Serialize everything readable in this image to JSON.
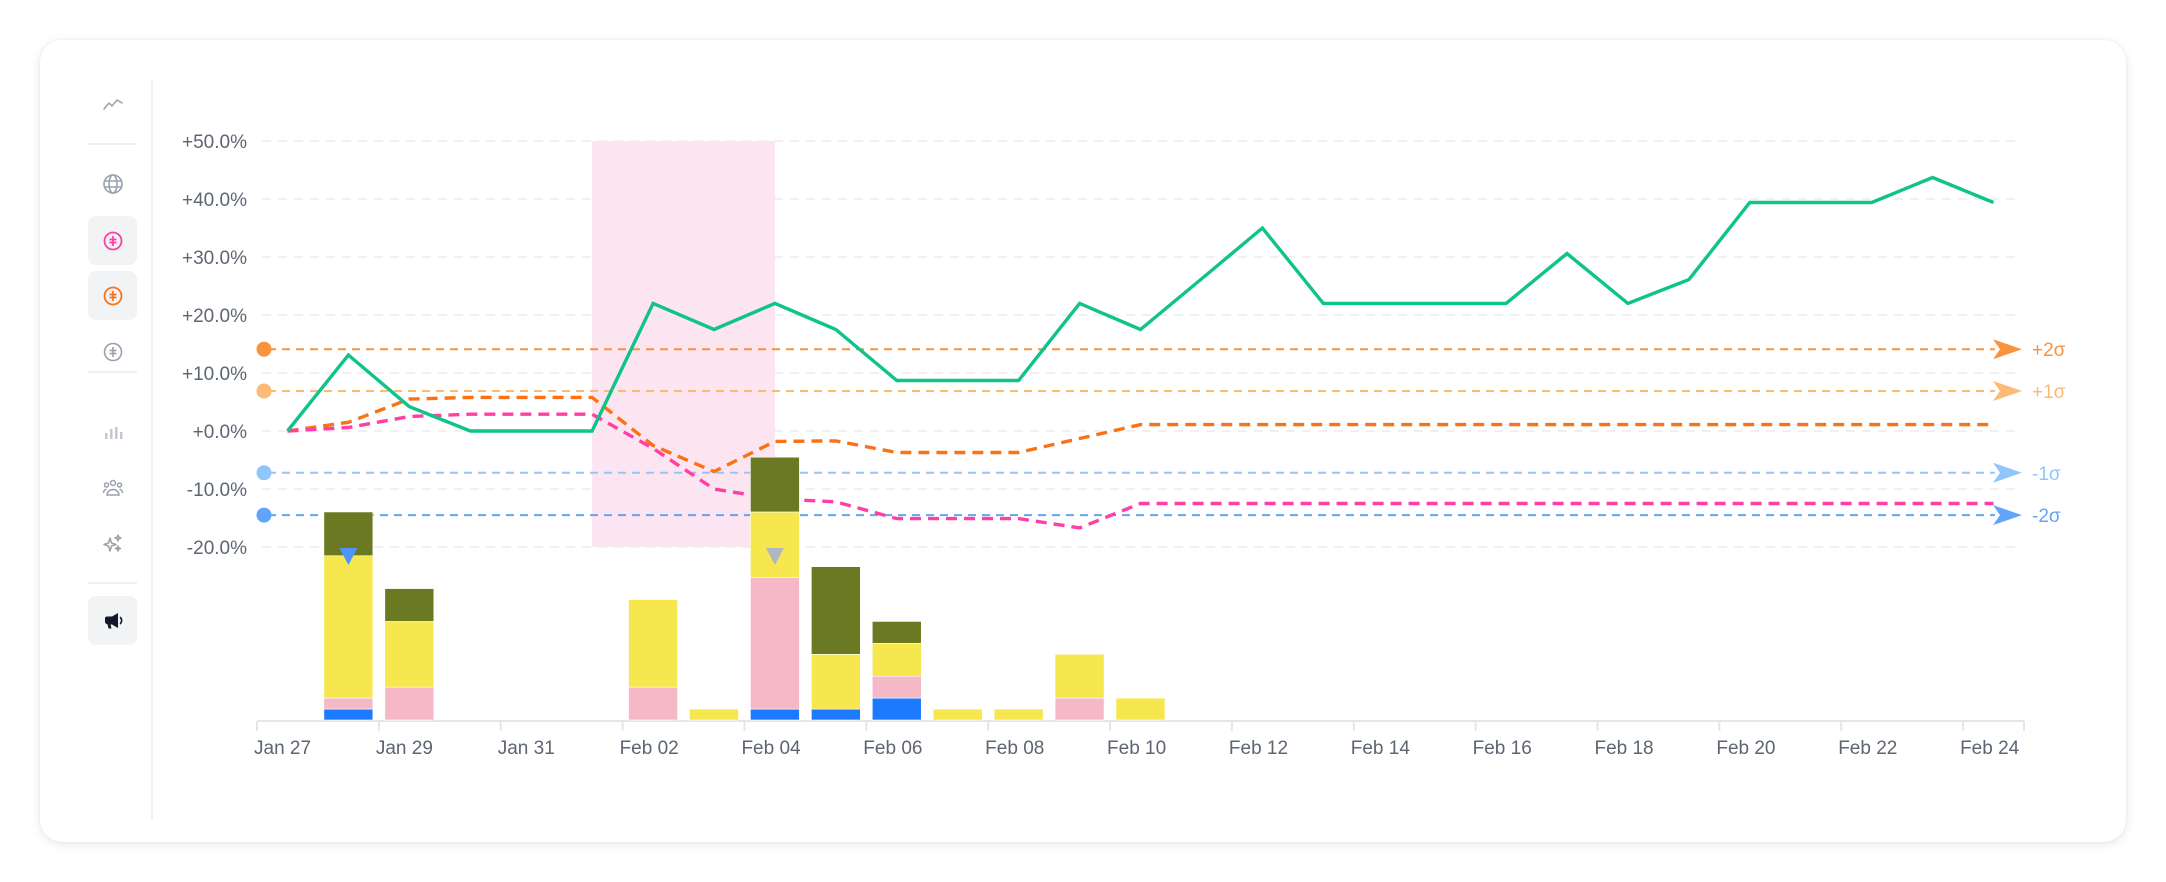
{
  "sidebar": {
    "items": [
      {
        "name": "trend-icon",
        "active": false
      },
      {
        "name": "globe-icon",
        "active": false
      },
      {
        "name": "pink-split-circle-icon",
        "active": true,
        "color": "#ff3fa4"
      },
      {
        "name": "orange-split-circle-icon",
        "active": true,
        "color": "#f97316"
      },
      {
        "name": "gray-split-circle-icon",
        "active": false,
        "color": "#9aa1ad"
      },
      {
        "name": "bar-chart-icon",
        "active": false
      },
      {
        "name": "users-icon",
        "active": false
      },
      {
        "name": "sparkles-icon",
        "active": false
      },
      {
        "name": "megaphone-icon",
        "active": true
      }
    ]
  },
  "colors": {
    "green": "#10c38a",
    "orange_dashed": "#f97316",
    "pink_dashed": "#ff3fa4",
    "plus2sigma": "#fb923c",
    "plus1sigma": "#fdba74",
    "minus1sigma": "#93c5fd",
    "minus2sigma": "#60a5fa",
    "highlight": "#fde4f1",
    "bar_blue": "#1d7aff",
    "bar_pink": "#f4b8c6",
    "bar_yellow": "#f5e74d",
    "bar_olive": "#6b7a22",
    "grid": "#ececec",
    "axis_text": "#5d6573"
  },
  "chart_data": {
    "type": "line",
    "title": "",
    "xlabel": "",
    "ylabel": "",
    "ylim": [
      -20,
      50
    ],
    "y_ticks": [
      "+50.0%",
      "+40.0%",
      "+30.0%",
      "+20.0%",
      "+10.0%",
      "+0.0%",
      "-10.0%",
      "-20.0%"
    ],
    "y_tick_values": [
      50,
      40,
      30,
      20,
      10,
      0,
      -10,
      -20
    ],
    "x_tick_labels": [
      "Jan 27",
      "Jan 29",
      "Jan 31",
      "Feb 02",
      "Feb 04",
      "Feb 06",
      "Feb 08",
      "Feb 10",
      "Feb 12",
      "Feb 14",
      "Feb 16",
      "Feb 18",
      "Feb 20",
      "Feb 22",
      "Feb 24"
    ],
    "x": [
      "Jan 27",
      "Jan 28",
      "Jan 29",
      "Jan 30",
      "Jan 31",
      "Feb 01",
      "Feb 02",
      "Feb 03",
      "Feb 04",
      "Feb 05",
      "Feb 06",
      "Feb 07",
      "Feb 08",
      "Feb 09",
      "Feb 10",
      "Feb 11",
      "Feb 12",
      "Feb 13",
      "Feb 14",
      "Feb 15",
      "Feb 16",
      "Feb 17",
      "Feb 18",
      "Feb 19",
      "Feb 20",
      "Feb 21",
      "Feb 22",
      "Feb 23",
      "Feb 24"
    ],
    "grid": true,
    "series": [
      {
        "name": "green",
        "style": "solid",
        "values": [
          0,
          13.1,
          4.2,
          0,
          0,
          0,
          22,
          17.5,
          22,
          17.5,
          8.7,
          8.7,
          8.7,
          22,
          17.5,
          26.2,
          35,
          22,
          22,
          22,
          22,
          30.6,
          22,
          26.1,
          39.4,
          39.4,
          39.4,
          43.7,
          39.4
        ]
      },
      {
        "name": "orange",
        "style": "dashed",
        "values": [
          0,
          1.5,
          5.5,
          5.8,
          5.8,
          5.8,
          -2.5,
          -7,
          -1.8,
          -1.7,
          -3.7,
          -3.7,
          -3.7,
          -1.3,
          1.1,
          1.1,
          1.1,
          1.1,
          1.1,
          1.1,
          1.1,
          1.1,
          1.1,
          1.1,
          1.1,
          1.1,
          1.1,
          1.1,
          1.1
        ]
      },
      {
        "name": "pink",
        "style": "dashed",
        "values": [
          0,
          0.6,
          2.5,
          2.9,
          2.9,
          2.9,
          -3,
          -10,
          -11.7,
          -12.2,
          -15.1,
          -15.1,
          -15.1,
          -16.7,
          -12.5,
          -12.5,
          -12.5,
          -12.5,
          -12.5,
          -12.5,
          -12.5,
          -12.5,
          -12.5,
          -12.5,
          -12.5,
          -12.5,
          -12.5,
          -12.5,
          -12.5
        ]
      }
    ],
    "reference_lines": [
      {
        "label": "+2σ",
        "value": 14.1
      },
      {
        "label": "+1σ",
        "value": 6.9
      },
      {
        "label": "-1σ",
        "value": -7.2
      },
      {
        "label": "-2σ",
        "value": -14.5
      }
    ],
    "highlight_range": {
      "from": "Feb 01",
      "to": "Feb 04"
    },
    "markers": [
      {
        "date": "Jan 28",
        "color": "#4d94ff"
      },
      {
        "date": "Feb 04",
        "color": "#b0b5bf"
      }
    ],
    "bars": {
      "type": "stacked-bar",
      "stack_order": [
        "blue",
        "pink",
        "yellow",
        "olive"
      ],
      "data": [
        {
          "date": "Jan 28",
          "blue": 1,
          "pink": 1,
          "yellow": 13,
          "olive": 4
        },
        {
          "date": "Jan 29",
          "blue": 0,
          "pink": 3,
          "yellow": 6,
          "olive": 3
        },
        {
          "date": "Feb 02",
          "blue": 0,
          "pink": 3,
          "yellow": 8,
          "olive": 0
        },
        {
          "date": "Feb 03",
          "blue": 0,
          "pink": 0,
          "yellow": 1,
          "olive": 0
        },
        {
          "date": "Feb 04",
          "blue": 1,
          "pink": 12,
          "yellow": 6,
          "olive": 5
        },
        {
          "date": "Feb 05",
          "blue": 1,
          "pink": 0,
          "yellow": 5,
          "olive": 8
        },
        {
          "date": "Feb 06",
          "blue": 2,
          "pink": 2,
          "yellow": 3,
          "olive": 2
        },
        {
          "date": "Feb 07",
          "blue": 0,
          "pink": 0,
          "yellow": 1,
          "olive": 0
        },
        {
          "date": "Feb 08",
          "blue": 0,
          "pink": 0,
          "yellow": 1,
          "olive": 0
        },
        {
          "date": "Feb 09",
          "blue": 0,
          "pink": 2,
          "yellow": 4,
          "olive": 0
        },
        {
          "date": "Feb 10",
          "blue": 0,
          "pink": 0,
          "yellow": 2,
          "olive": 0
        }
      ]
    }
  }
}
